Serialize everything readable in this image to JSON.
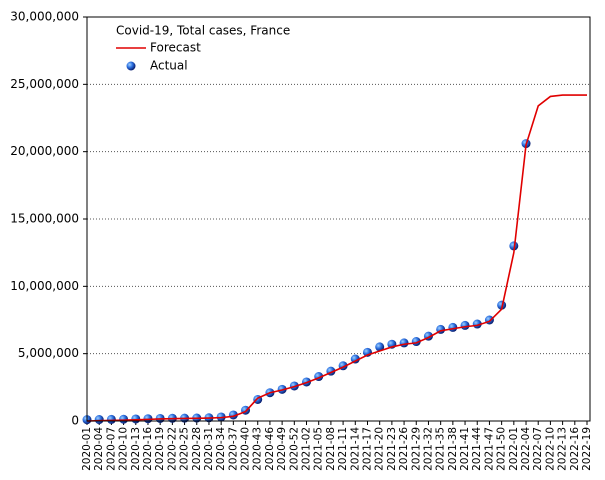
{
  "chart_data": {
    "type": "line",
    "title": "Covid-19, Total cases, France",
    "categories": [
      "2020-01",
      "2020-04",
      "2020-07",
      "2020-10",
      "2020-13",
      "2020-16",
      "2020-19",
      "2020-22",
      "2020-25",
      "2020-28",
      "2020-31",
      "2020-34",
      "2020-37",
      "2020-40",
      "2020-43",
      "2020-46",
      "2020-49",
      "2020-52",
      "2021-02",
      "2021-05",
      "2021-08",
      "2021-11",
      "2021-14",
      "2021-17",
      "2021-20",
      "2021-23",
      "2021-26",
      "2021-29",
      "2021-32",
      "2021-35",
      "2021-38",
      "2021-41",
      "2021-44",
      "2021-47",
      "2021-50",
      "2022-01",
      "2022-04",
      "2022-07",
      "2022-10",
      "2022-13",
      "2022-16",
      "2022-19"
    ],
    "series": [
      {
        "name": "Forecast",
        "color": "#e00000",
        "style": "line",
        "values": [
          0,
          20000,
          40000,
          60000,
          90000,
          120000,
          150000,
          170000,
          190000,
          200000,
          220000,
          250000,
          350000,
          700000,
          1700000,
          2100000,
          2300000,
          2550000,
          2850000,
          3200000,
          3600000,
          4000000,
          4450000,
          4900000,
          5200000,
          5500000,
          5700000,
          5800000,
          6200000,
          6700000,
          6850000,
          7000000,
          7100000,
          7400000,
          8300000,
          12500000,
          20500000,
          23400000,
          24100000,
          24200000,
          24200000,
          24200000
        ]
      },
      {
        "name": "Actual",
        "color": "#1a5fd6",
        "style": "dots",
        "values": [
          100000,
          110000,
          120000,
          130000,
          150000,
          170000,
          190000,
          200000,
          210000,
          220000,
          240000,
          300000,
          450000,
          800000,
          1600000,
          2100000,
          2350000,
          2600000,
          2900000,
          3300000,
          3700000,
          4100000,
          4600000,
          5100000,
          5500000,
          5700000,
          5800000,
          5900000,
          6300000,
          6800000,
          6950000,
          7100000,
          7200000,
          7500000,
          8600000,
          13000000,
          20600000,
          null,
          null,
          null,
          null,
          null
        ]
      }
    ],
    "ylim": [
      0,
      30000000
    ],
    "yticks": [
      0,
      {
        "value": 5000000,
        "label": "5,000,000"
      },
      {
        "value": 10000000,
        "label": "10,000,000"
      },
      {
        "value": 15000000,
        "label": "15,000,000"
      },
      {
        "value": 20000000,
        "label": "20,000,000"
      },
      {
        "value": 25000000,
        "label": "25,000,000"
      },
      {
        "value": 30000000,
        "label": "30,000,000"
      }
    ],
    "grid": true,
    "legend": "upper-left"
  }
}
